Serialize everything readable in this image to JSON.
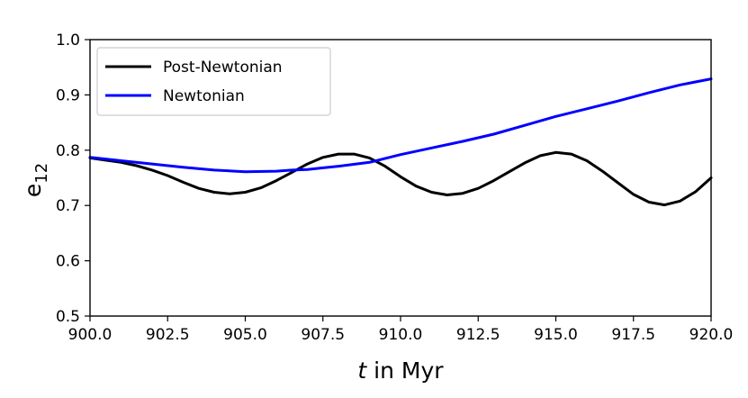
{
  "chart_data": {
    "type": "line",
    "xlabel_italic": "t",
    "xlabel_rest": " in Myr",
    "ylabel_main": "e",
    "ylabel_sub": "12",
    "xlim": [
      900.0,
      920.0
    ],
    "ylim": [
      0.5,
      1.0
    ],
    "xticks": [
      "900.0",
      "902.5",
      "905.0",
      "907.5",
      "910.0",
      "912.5",
      "915.0",
      "917.5",
      "920.0"
    ],
    "yticks": [
      "0.5",
      "0.6",
      "0.7",
      "0.8",
      "0.9",
      "1.0"
    ],
    "legend_position": "top-left",
    "grid": false,
    "series": [
      {
        "name": "Post-Newtonian",
        "color": "#000000",
        "x": [
          900.0,
          900.5,
          901.0,
          901.5,
          902.0,
          902.5,
          903.0,
          903.5,
          904.0,
          904.5,
          905.0,
          905.5,
          906.0,
          906.5,
          907.0,
          907.5,
          908.0,
          908.5,
          909.0,
          909.5,
          910.0,
          910.5,
          911.0,
          911.5,
          912.0,
          912.5,
          913.0,
          913.5,
          914.0,
          914.5,
          915.0,
          915.5,
          916.0,
          916.5,
          917.0,
          917.5,
          918.0,
          918.5,
          919.0,
          919.5,
          920.0
        ],
        "y": [
          0.786,
          0.782,
          0.778,
          0.772,
          0.764,
          0.754,
          0.742,
          0.731,
          0.724,
          0.721,
          0.724,
          0.732,
          0.745,
          0.76,
          0.775,
          0.787,
          0.793,
          0.793,
          0.786,
          0.771,
          0.752,
          0.735,
          0.724,
          0.719,
          0.722,
          0.731,
          0.745,
          0.761,
          0.777,
          0.79,
          0.796,
          0.793,
          0.781,
          0.762,
          0.741,
          0.72,
          0.706,
          0.701,
          0.708,
          0.725,
          0.75
        ]
      },
      {
        "name": "Newtonian",
        "color": "#0000ff",
        "x": [
          900.0,
          901.0,
          902.0,
          903.0,
          904.0,
          905.0,
          906.0,
          906.5,
          907.0,
          907.5,
          908.0,
          909.0,
          910.0,
          911.0,
          912.0,
          913.0,
          914.0,
          915.0,
          916.0,
          917.0,
          918.0,
          919.0,
          920.0
        ],
        "y": [
          0.787,
          0.781,
          0.775,
          0.769,
          0.764,
          0.761,
          0.762,
          0.764,
          0.765,
          0.768,
          0.771,
          0.778,
          0.792,
          0.804,
          0.816,
          0.829,
          0.845,
          0.861,
          0.875,
          0.889,
          0.904,
          0.918,
          0.929
        ]
      }
    ]
  }
}
